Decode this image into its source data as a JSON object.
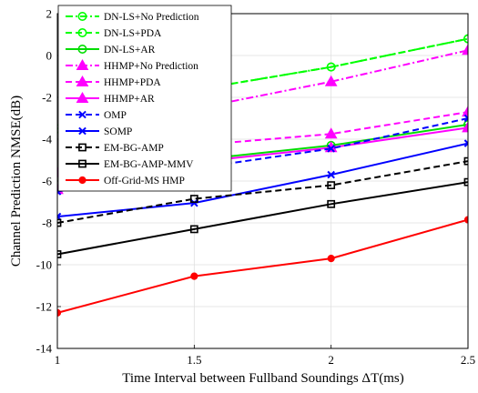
{
  "chart_data": {
    "type": "line",
    "xlabel": "Time Interval between Fullband Soundings ΔT(ms)",
    "ylabel": "Channel Prediction NMSE(dB)",
    "xlim": [
      1,
      2.5
    ],
    "ylim": [
      -14,
      2
    ],
    "x_ticks": [
      "1",
      "1.5",
      "2",
      "2.5"
    ],
    "y_ticks": [
      "2",
      "0",
      "-2",
      "-4",
      "-6",
      "-8",
      "-10",
      "-12",
      "-14"
    ],
    "grid": true,
    "legend_position": "top-left",
    "x": [
      1,
      1.5,
      2,
      2.5
    ],
    "series": [
      {
        "name": "DN-LS+No Prediction",
        "values": [
          -3.5,
          -1.65,
          -0.55,
          0.8
        ],
        "color": "#00ff00",
        "dash": "dashdot",
        "marker": "circle"
      },
      {
        "name": "DN-LS+PDA",
        "values": [
          -3.5,
          -1.65,
          -0.55,
          0.8
        ],
        "color": "#00ff00",
        "dash": "dashed",
        "marker": "circle"
      },
      {
        "name": "DN-LS+AR",
        "values": [
          -6.4,
          -5.0,
          -4.3,
          -3.3
        ],
        "color": "#00dd00",
        "dash": "solid",
        "marker": "circle"
      },
      {
        "name": "HHMP+No Prediction",
        "values": [
          -5.6,
          -2.55,
          -1.25,
          0.25
        ],
        "color": "#ff00ff",
        "dash": "dashdot",
        "marker": "triangle"
      },
      {
        "name": "HHMP+PDA",
        "values": [
          -5.6,
          -4.3,
          -3.75,
          -2.7
        ],
        "color": "#ff00ff",
        "dash": "dashed",
        "marker": "triangle"
      },
      {
        "name": "HHMP+AR",
        "values": [
          -6.4,
          -5.1,
          -4.4,
          -3.45
        ],
        "color": "#ff00ff",
        "dash": "solid",
        "marker": "triangle"
      },
      {
        "name": "OMP",
        "values": [
          -6.5,
          -5.4,
          -4.45,
          -3.0
        ],
        "color": "#0000ff",
        "dash": "dashed",
        "marker": "x"
      },
      {
        "name": "SOMP",
        "values": [
          -7.7,
          -7.05,
          -5.7,
          -4.2
        ],
        "color": "#0000ff",
        "dash": "solid",
        "marker": "x"
      },
      {
        "name": "EM-BG-AMP",
        "values": [
          -8.0,
          -6.85,
          -6.2,
          -5.05
        ],
        "color": "#000000",
        "dash": "dashed",
        "marker": "square"
      },
      {
        "name": "EM-BG-AMP-MMV",
        "values": [
          -9.5,
          -8.3,
          -7.1,
          -6.05
        ],
        "color": "#000000",
        "dash": "solid",
        "marker": "square"
      },
      {
        "name": "Off-Grid-MS HMP",
        "values": [
          -12.3,
          -10.55,
          -9.7,
          -7.85
        ],
        "color": "#ff0000",
        "dash": "solid",
        "marker": "dot"
      }
    ]
  }
}
